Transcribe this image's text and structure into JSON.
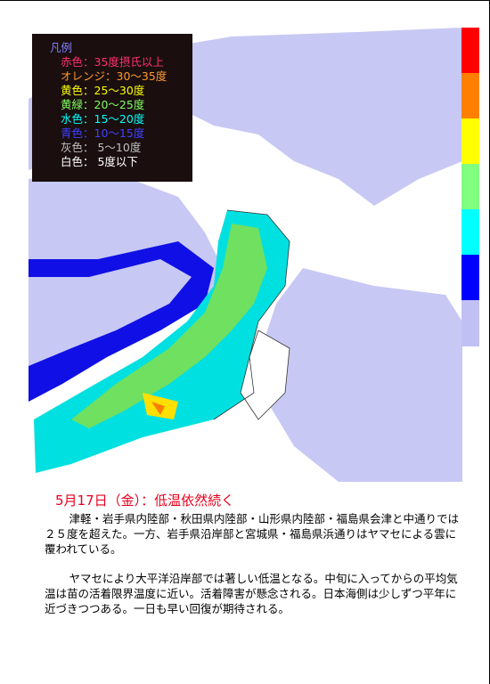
{
  "legend": {
    "title": "凡例",
    "items": [
      "赤色：35度摂氏以上",
      "オレンジ：30〜35度",
      "黄色：25〜30度",
      "黄緑：20〜25度",
      "水色：15〜20度",
      "青色：10〜15度",
      "灰色： 5〜10度",
      "白色： 5度以下"
    ]
  },
  "article": {
    "title": "5月17日（金）：低温依然続く",
    "paragraphs": [
      "津軽・岩手県内陸部・秋田県内陸部・山形県内陸部・福島県会津と中通りでは２５度を超えた。一方、岩手県沿岸部と宮城県・福島県浜通りはヤマセによる雲に覆われている。",
      "ヤマセにより大平洋沿岸部では著しい低温となる。中旬に入ってからの平均気温は苗の活着限界温度に近い。活着障害が懸念される。日本海側は少しずつ平年に近づきつつある。一日も早い回復が期待される。"
    ]
  }
}
